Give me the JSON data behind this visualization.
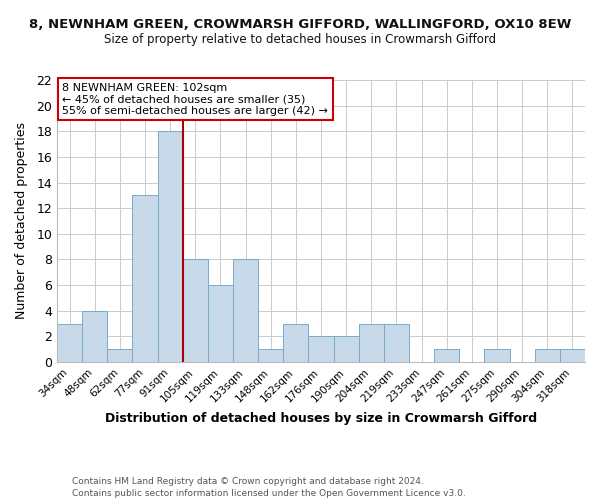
{
  "title_line1": "8, NEWNHAM GREEN, CROWMARSH GIFFORD, WALLINGFORD, OX10 8EW",
  "title_line2": "Size of property relative to detached houses in Crowmarsh Gifford",
  "xlabel": "Distribution of detached houses by size in Crowmarsh Gifford",
  "ylabel": "Number of detached properties",
  "footer_line1": "Contains HM Land Registry data © Crown copyright and database right 2024.",
  "footer_line2": "Contains public sector information licensed under the Open Government Licence v3.0.",
  "bin_labels": [
    "34sqm",
    "48sqm",
    "62sqm",
    "77sqm",
    "91sqm",
    "105sqm",
    "119sqm",
    "133sqm",
    "148sqm",
    "162sqm",
    "176sqm",
    "190sqm",
    "204sqm",
    "219sqm",
    "233sqm",
    "247sqm",
    "261sqm",
    "275sqm",
    "290sqm",
    "304sqm",
    "318sqm"
  ],
  "bar_values": [
    3,
    4,
    1,
    13,
    18,
    8,
    6,
    8,
    1,
    3,
    2,
    2,
    3,
    3,
    0,
    1,
    0,
    1,
    0,
    1,
    1
  ],
  "bar_color": "#c8daea",
  "bar_edge_color": "#7aaac8",
  "grid_color": "#cccccc",
  "annotation_box_text": "8 NEWNHAM GREEN: 102sqm\n← 45% of detached houses are smaller (35)\n55% of semi-detached houses are larger (42) →",
  "annotation_box_color": "#ffffff",
  "annotation_box_edge_color": "#cc0000",
  "vline_color": "#aa0000",
  "ylim": [
    0,
    22
  ],
  "yticks": [
    0,
    2,
    4,
    6,
    8,
    10,
    12,
    14,
    16,
    18,
    20,
    22
  ],
  "background_color": "#ffffff",
  "vline_position": 4.5
}
